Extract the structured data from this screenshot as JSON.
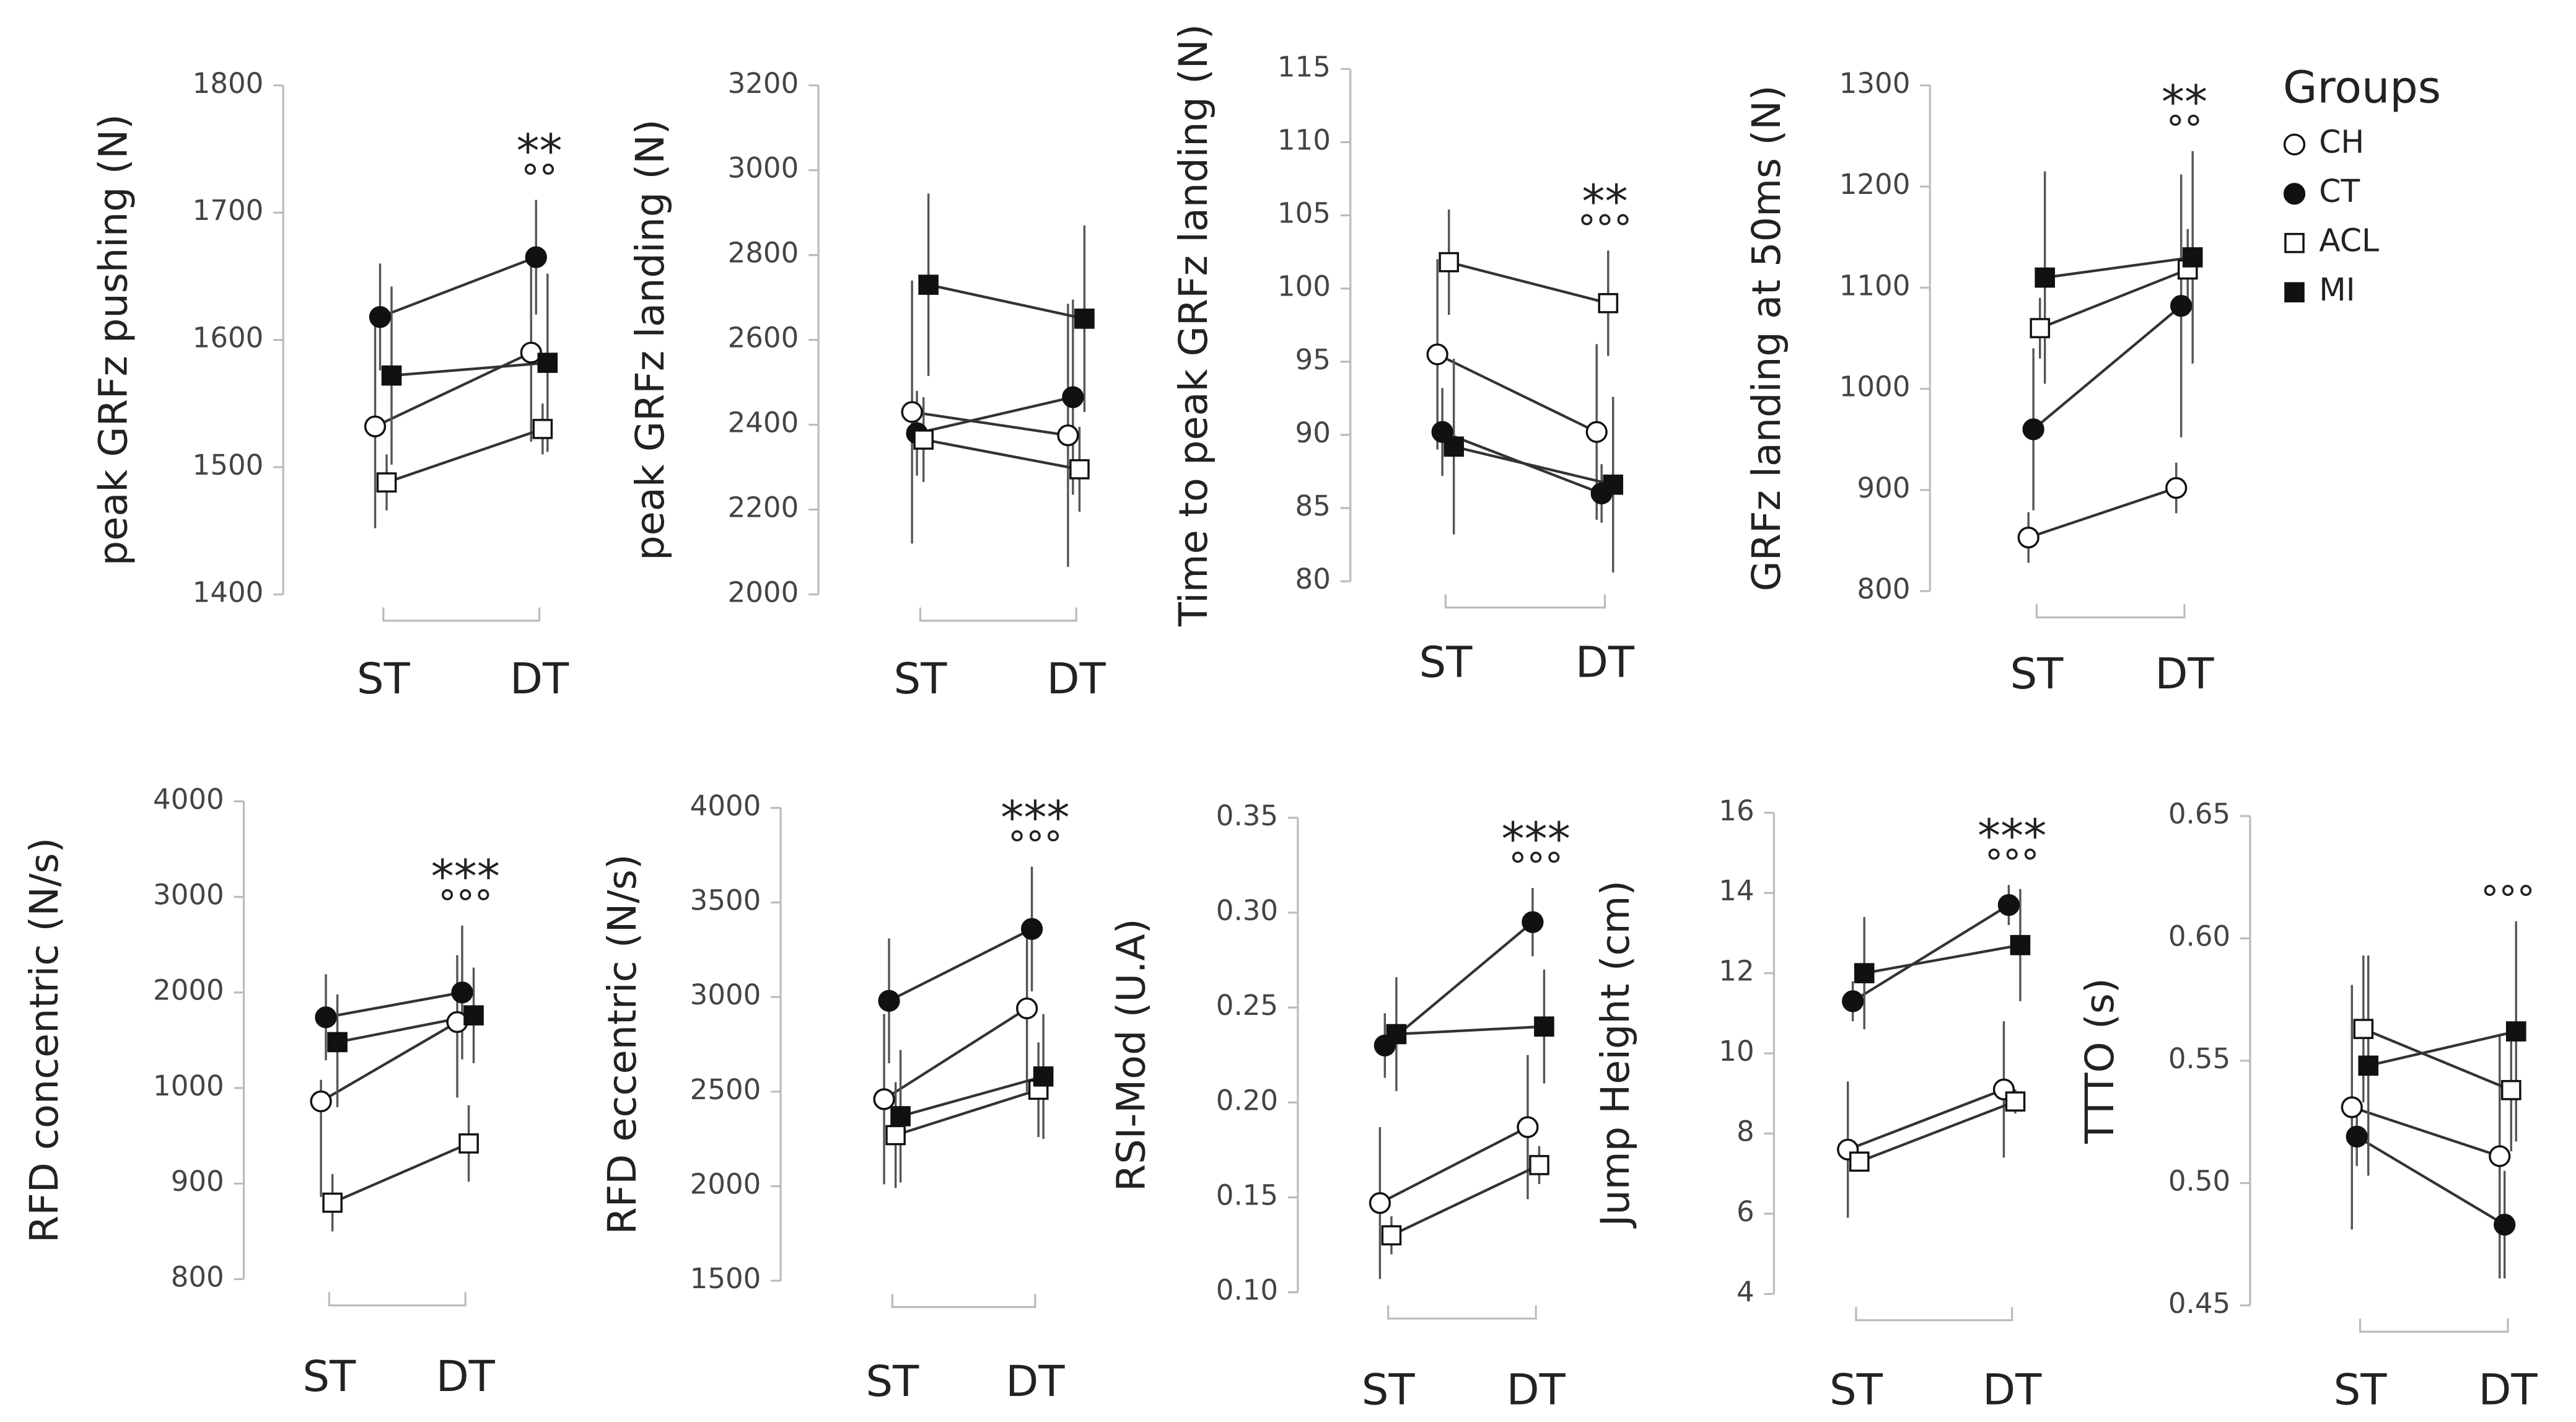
{
  "legend": {
    "title": "Groups",
    "entries": [
      {
        "name": "CH",
        "marker": "circle",
        "fill": "#ffffff"
      },
      {
        "name": "CT",
        "marker": "circle",
        "fill": "#111111"
      },
      {
        "name": "ACL",
        "marker": "square",
        "fill": "#ffffff"
      },
      {
        "name": "MI",
        "marker": "square",
        "fill": "#111111"
      }
    ]
  },
  "chart_data": [
    {
      "type": "line",
      "y_label": "peak GRFz pushing (N)",
      "categories": [
        "ST",
        "DT"
      ],
      "ylim": [
        1400,
        1800
      ],
      "yticks": [
        1400,
        1500,
        1600,
        1700,
        1800
      ],
      "annotations": [
        "**",
        "°°"
      ],
      "series": [
        {
          "values": [
            1532,
            1590
          ],
          "errors": [
            80,
            70
          ]
        },
        {
          "values": [
            1618,
            1665
          ],
          "errors": [
            42,
            45
          ]
        },
        {
          "values": [
            1488,
            1530
          ],
          "errors": [
            22,
            20
          ]
        },
        {
          "values": [
            1572,
            1582
          ],
          "errors": [
            70,
            70
          ]
        }
      ]
    },
    {
      "type": "line",
      "y_label": "peak GRFz landing (N)",
      "categories": [
        "ST",
        "DT"
      ],
      "ylim": [
        2000,
        3200
      ],
      "yticks": [
        2000,
        2200,
        2400,
        2600,
        2800,
        3000,
        3200
      ],
      "annotations": [],
      "series": [
        {
          "values": [
            2430,
            2375
          ],
          "errors": [
            310,
            310
          ]
        },
        {
          "values": [
            2380,
            2465
          ],
          "errors": [
            100,
            230
          ]
        },
        {
          "values": [
            2365,
            2295
          ],
          "errors": [
            100,
            100
          ]
        },
        {
          "values": [
            2730,
            2650
          ],
          "errors": [
            215,
            220
          ]
        }
      ]
    },
    {
      "type": "line",
      "y_label": "Time to peak GRFz landing (N)",
      "categories": [
        "ST",
        "DT"
      ],
      "ylim": [
        80,
        115
      ],
      "yticks": [
        80,
        85,
        90,
        95,
        100,
        105,
        110,
        115
      ],
      "annotations": [
        "**",
        "°°°"
      ],
      "series": [
        {
          "values": [
            95.5,
            90.2
          ],
          "errors": [
            6.5,
            6
          ]
        },
        {
          "values": [
            90.2,
            86.0
          ],
          "errors": [
            3,
            2
          ]
        },
        {
          "values": [
            101.8,
            99.0
          ],
          "errors": [
            3.6,
            3.6
          ]
        },
        {
          "values": [
            89.2,
            86.6
          ],
          "errors": [
            6,
            6
          ]
        }
      ]
    },
    {
      "type": "line",
      "y_label": "GRFz landing at 50ms (N)",
      "categories": [
        "ST",
        "DT"
      ],
      "ylim": [
        800,
        1300
      ],
      "yticks": [
        800,
        900,
        1000,
        1100,
        1200,
        1300
      ],
      "annotations": [
        "**",
        "°°"
      ],
      "series": [
        {
          "values": [
            853,
            902
          ],
          "errors": [
            25,
            25
          ]
        },
        {
          "values": [
            960,
            1082
          ],
          "errors": [
            80,
            130
          ]
        },
        {
          "values": [
            1060,
            1118
          ],
          "errors": [
            30,
            40
          ]
        },
        {
          "values": [
            1110,
            1130
          ],
          "errors": [
            105,
            105
          ]
        }
      ]
    },
    {
      "type": "line",
      "y_label": "RFD concentric (N/s)",
      "categories": [
        "ST",
        "DT"
      ],
      "ylim": [
        800,
        4000
      ],
      "yticks": [
        800,
        900,
        1000,
        2000,
        3000,
        4000
      ],
      "annotations": [
        "***",
        "°°°"
      ],
      "series": [
        {
          "values": [
            986,
            1690
          ],
          "errors": [
            100,
            700
          ]
        },
        {
          "values": [
            1740,
            2000
          ],
          "errors": [
            450,
            700
          ]
        },
        {
          "values": [
            880,
            942
          ],
          "errors": [
            30,
            40
          ]
        },
        {
          "values": [
            1480,
            1760
          ],
          "errors": [
            500,
            500
          ]
        }
      ]
    },
    {
      "type": "line",
      "y_label": "RFD eccentric (N/s)",
      "categories": [
        "ST",
        "DT"
      ],
      "ylim": [
        1500,
        4000
      ],
      "yticks": [
        1500,
        2000,
        2500,
        3000,
        3500,
        4000
      ],
      "annotations": [
        "***",
        "°°°"
      ],
      "series": [
        {
          "values": [
            2460,
            2940
          ],
          "errors": [
            450,
            440
          ]
        },
        {
          "values": [
            2980,
            3360
          ],
          "errors": [
            330,
            330
          ]
        },
        {
          "values": [
            2270,
            2510
          ],
          "errors": [
            280,
            250
          ]
        },
        {
          "values": [
            2370,
            2580
          ],
          "errors": [
            350,
            330
          ]
        }
      ]
    },
    {
      "type": "line",
      "y_label": "RSI-Mod (U.A)",
      "categories": [
        "ST",
        "DT"
      ],
      "ylim": [
        0.1,
        0.35
      ],
      "yticks": [
        {
          "value": 0.1,
          "label": "0.10"
        },
        0.15,
        {
          "value": 0.2,
          "label": "0.20"
        },
        0.25,
        {
          "value": 0.3,
          "label": "0.30"
        },
        0.35
      ],
      "annotations": [
        "***",
        "°°°"
      ],
      "series": [
        {
          "values": [
            0.147,
            0.187
          ],
          "errors": [
            0.04,
            0.038
          ]
        },
        {
          "values": [
            0.23,
            0.295
          ],
          "errors": [
            0.017,
            0.018
          ]
        },
        {
          "values": [
            0.13,
            0.167
          ],
          "errors": [
            0.01,
            0.01
          ]
        },
        {
          "values": [
            0.236,
            0.24
          ],
          "errors": [
            0.03,
            0.03
          ]
        }
      ]
    },
    {
      "type": "line",
      "y_label": "Jump Height (cm)",
      "categories": [
        "ST",
        "DT"
      ],
      "ylim": [
        4,
        16
      ],
      "yticks": [
        4,
        6,
        8,
        10,
        12,
        14,
        16
      ],
      "annotations": [
        "***",
        "°°°"
      ],
      "series": [
        {
          "values": [
            7.6,
            9.1
          ],
          "errors": [
            1.7,
            1.7
          ]
        },
        {
          "values": [
            11.3,
            13.7
          ],
          "errors": [
            0.5,
            0.5
          ]
        },
        {
          "values": [
            7.3,
            8.8
          ],
          "errors": [
            0.2,
            0.3
          ]
        },
        {
          "values": [
            12.0,
            12.7
          ],
          "errors": [
            1.4,
            1.4
          ]
        }
      ]
    },
    {
      "type": "line",
      "y_label": "TTTO (s)",
      "categories": [
        "ST",
        "DT"
      ],
      "ylim": [
        0.45,
        0.65
      ],
      "yticks": [
        0.45,
        {
          "value": 0.5,
          "label": "0.50"
        },
        0.55,
        {
          "value": 0.6,
          "label": "0.60"
        },
        0.65
      ],
      "annotations": [
        "°°°"
      ],
      "series": [
        {
          "values": [
            0.531,
            0.511
          ],
          "errors": [
            0.05,
            0.05
          ]
        },
        {
          "values": [
            0.519,
            0.483
          ],
          "errors": [
            0.012,
            0.022
          ]
        },
        {
          "values": [
            0.563,
            0.538
          ],
          "errors": [
            0.03,
            0.025
          ]
        },
        {
          "values": [
            0.548,
            0.562
          ],
          "errors": [
            0.045,
            0.045
          ]
        }
      ]
    }
  ]
}
